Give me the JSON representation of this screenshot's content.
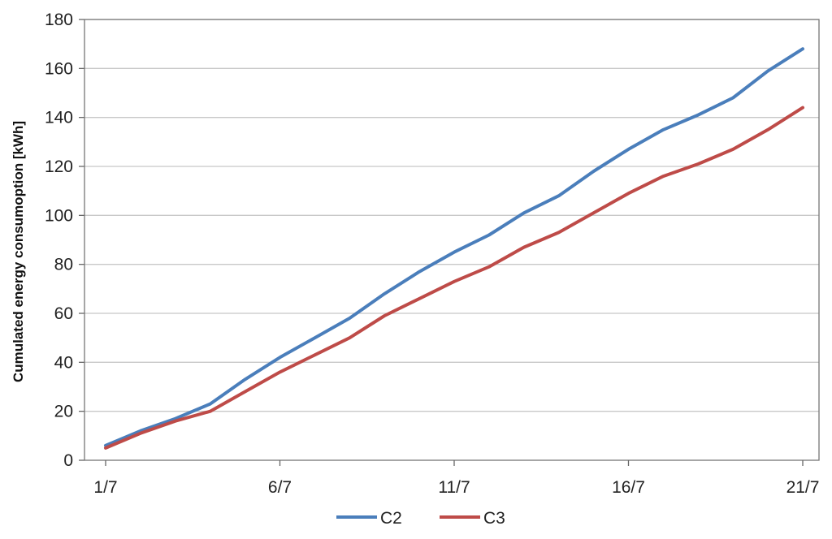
{
  "chart_data": {
    "type": "line",
    "title": "",
    "xlabel": "",
    "ylabel": "Cumulated  energy  consumoption  [kWh]",
    "x": [
      1,
      2,
      3,
      4,
      5,
      6,
      7,
      8,
      9,
      10,
      11,
      12,
      13,
      14,
      15,
      16,
      17,
      18,
      19,
      20,
      21
    ],
    "xticks": [
      {
        "x": 1,
        "label": "1/7"
      },
      {
        "x": 6,
        "label": "6/7"
      },
      {
        "x": 11,
        "label": "11/7"
      },
      {
        "x": 16,
        "label": "16/7"
      },
      {
        "x": 21,
        "label": "21/7"
      }
    ],
    "xlim": [
      1,
      21
    ],
    "ylim": [
      0,
      180
    ],
    "yticks": [
      0,
      20,
      40,
      60,
      80,
      100,
      120,
      140,
      160,
      180
    ],
    "grid": true,
    "legend_position": "bottom",
    "series": [
      {
        "name": "C2",
        "color": "#4a7ebb",
        "values": [
          6,
          12,
          17,
          23,
          33,
          42,
          50,
          58,
          68,
          77,
          85,
          92,
          101,
          108,
          118,
          127,
          135,
          141,
          148,
          159,
          168
        ]
      },
      {
        "name": "C3",
        "color": "#be4b48",
        "values": [
          5,
          11,
          16,
          20,
          28,
          36,
          43,
          50,
          59,
          66,
          73,
          79,
          87,
          93,
          101,
          109,
          116,
          121,
          127,
          135,
          144
        ]
      }
    ]
  }
}
